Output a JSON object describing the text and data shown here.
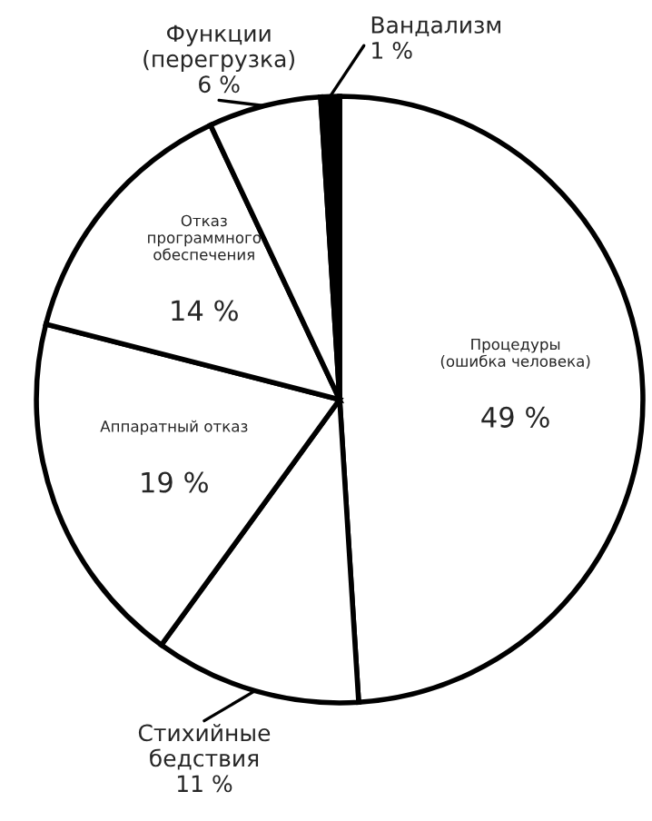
{
  "chart_data": {
    "type": "pie",
    "categories": [
      "Процедуры\n(ошибка человека)",
      "Стихийные\nбедствия",
      "Аппаратный отказ",
      "Отказ\nпрограммного\nобеспечения",
      "Функции\n(перегрузка)",
      "Вандализм"
    ],
    "values": [
      49,
      11,
      19,
      14,
      6,
      1
    ],
    "value_labels": [
      "49 %",
      "11 %",
      "19 %",
      "14 %",
      "6 %",
      "1 %"
    ],
    "colors": [
      "#ffffff",
      "#ffffff",
      "#ffffff",
      "#ffffff",
      "#ffffff",
      "#000000"
    ],
    "legend": false
  }
}
